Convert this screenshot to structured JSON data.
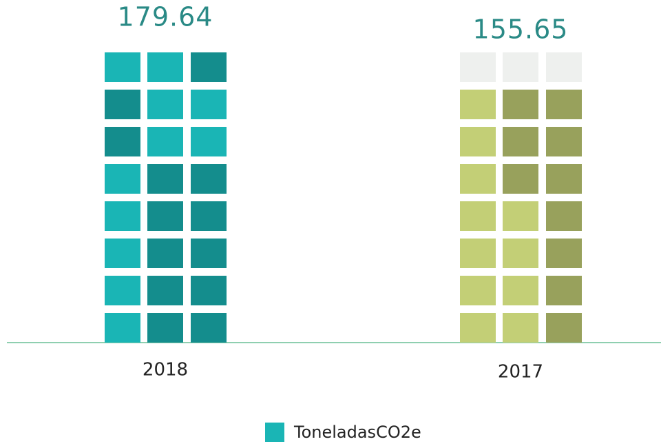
{
  "chart_data": {
    "type": "waffle-bar",
    "categories": [
      "2018",
      "2017"
    ],
    "values": [
      179.64,
      155.65
    ],
    "colors": [
      "#1ab5b5",
      "#c3cf76"
    ],
    "series_name": "ToneladasCO2e",
    "legend_color": "#1ab5b5"
  }
}
